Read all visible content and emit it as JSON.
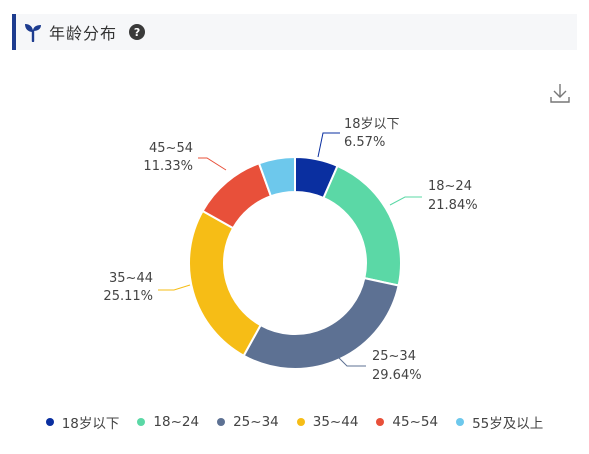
{
  "header": {
    "title": "年龄分布",
    "help_symbol": "?"
  },
  "icons": {
    "title_icon": "sprout-icon",
    "help_icon": "question-icon",
    "download_icon": "download-icon"
  },
  "colors": {
    "accent": "#1d3c8f",
    "series": [
      "#0a2fa0",
      "#5bd8a6",
      "#5d7193",
      "#f6bd16",
      "#e8503a",
      "#6dc8ec"
    ]
  },
  "chart_data": {
    "type": "pie",
    "style": "donut",
    "categories": [
      "18岁以下",
      "18~24",
      "25~34",
      "35~44",
      "45~54",
      "55岁及以上"
    ],
    "values": [
      6.57,
      21.84,
      29.64,
      25.11,
      11.33,
      5.51
    ],
    "labels": [
      {
        "name": "18岁以下",
        "value": "6.57%"
      },
      {
        "name": "18~24",
        "value": "21.84%"
      },
      {
        "name": "25~34",
        "value": "29.64%"
      },
      {
        "name": "35~44",
        "value": "25.11%"
      },
      {
        "name": "45~54",
        "value": "11.33%"
      },
      {
        "name": "55岁及以上",
        "value": ""
      }
    ],
    "legend": [
      "18岁以下",
      "18~24",
      "25~34",
      "35~44",
      "45~54",
      "55岁及以上"
    ],
    "legend_position": "bottom"
  }
}
